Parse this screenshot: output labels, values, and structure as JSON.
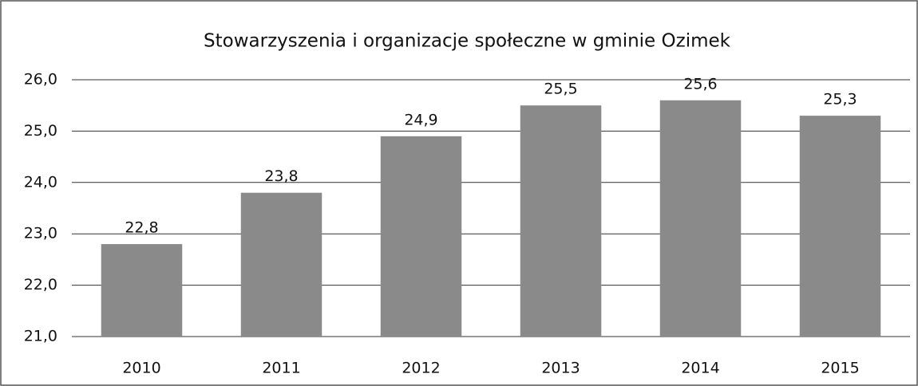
{
  "chart_data": {
    "type": "bar",
    "title": "Stowarzyszenia i organizacje społeczne w gminie Ozimek",
    "categories": [
      "2010",
      "2011",
      "2012",
      "2013",
      "2014",
      "2015"
    ],
    "values": [
      22.8,
      23.8,
      24.9,
      25.5,
      25.6,
      25.3
    ],
    "value_labels": [
      "22,8",
      "23,8",
      "24,9",
      "25,5",
      "25,6",
      "25,3"
    ],
    "color": "#8a8a8a",
    "ylim": [
      21,
      26
    ],
    "yticks": [
      {
        "value": 21,
        "label": "21,0"
      },
      {
        "value": 22,
        "label": "22,0"
      },
      {
        "value": 23,
        "label": "23,0"
      },
      {
        "value": 24,
        "label": "24,0"
      },
      {
        "value": 25,
        "label": "25,0"
      },
      {
        "value": 26,
        "label": "26,0"
      }
    ],
    "grid": true
  }
}
